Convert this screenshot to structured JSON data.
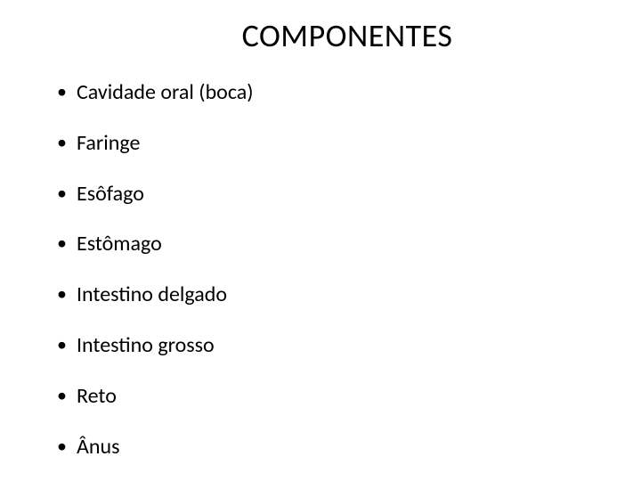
{
  "slide": {
    "title": "COMPONENTES",
    "title_fontsize": 36,
    "title_color": "#000000",
    "background_color": "#ffffff",
    "bullet_fontsize": 24,
    "bullet_color": "#000000",
    "font_family": "Calibri",
    "items": [
      "Cavidade oral (boca)",
      "Faringe",
      "Esôfago",
      "Estômago",
      "Intestino delgado",
      "Intestino grosso",
      "Reto",
      "Ânus"
    ]
  }
}
